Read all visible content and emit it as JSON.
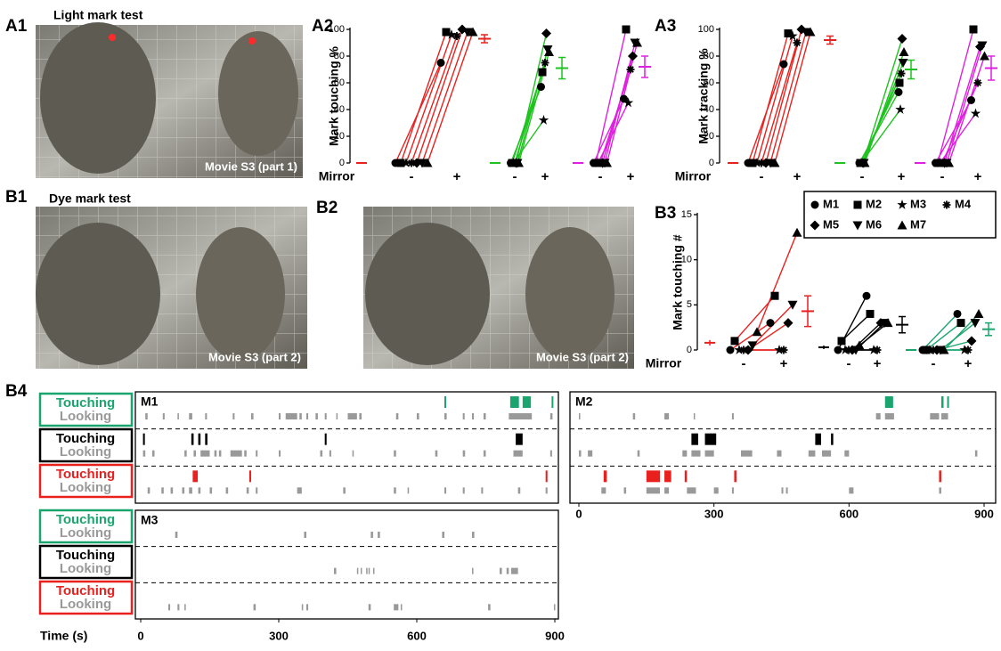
{
  "panels": {
    "a1": {
      "label": "A1",
      "title": "Light mark test",
      "caption": "Movie S3 (part 1)"
    },
    "b1": {
      "label": "B1",
      "title": "Dye mark test",
      "caption": "Movie S3 (part 2)"
    },
    "b2": {
      "label": "B2",
      "caption": "Movie S3 (part 2)"
    },
    "b4": {
      "label": "B4"
    }
  },
  "legend": [
    {
      "name": "M1",
      "marker": "circle"
    },
    {
      "name": "M2",
      "marker": "square"
    },
    {
      "name": "M3",
      "marker": "star"
    },
    {
      "name": "M4",
      "marker": "asterisk"
    },
    {
      "name": "M5",
      "marker": "diamond"
    },
    {
      "name": "M6",
      "marker": "triangle-down"
    },
    {
      "name": "M7",
      "marker": "triangle-up"
    }
  ],
  "chart_data": [
    {
      "type": "paired-dot",
      "label": "A2",
      "ylabel": "Mark touching %",
      "xlabel": "Mirror",
      "conditions": [
        "-",
        "+"
      ],
      "ylim": [
        0,
        100
      ],
      "yticks": [
        0,
        20,
        40,
        60,
        80,
        100
      ],
      "groups": [
        {
          "color": "#e8211f",
          "baseline": 0,
          "minus": [
            0,
            0,
            0,
            0,
            0,
            0,
            0
          ],
          "plus": [
            75,
            98,
            96,
            95,
            100,
            98,
            98
          ],
          "mean": 93,
          "err": 3
        },
        {
          "color": "#1fc21f",
          "baseline": 0,
          "minus": [
            0,
            0,
            0,
            0,
            0,
            0,
            0
          ],
          "plus": [
            57,
            68,
            32,
            75,
            97,
            85,
            83
          ],
          "mean": 71,
          "err": 8
        },
        {
          "color": "#e020e0",
          "baseline": 0,
          "minus": [
            0,
            0,
            0,
            0,
            0,
            0,
            0
          ],
          "plus": [
            48,
            100,
            45,
            70,
            80,
            90,
            90
          ],
          "mean": 72,
          "err": 8
        }
      ]
    },
    {
      "type": "paired-dot",
      "label": "A3",
      "ylabel": "Mark tracking %",
      "xlabel": "Mirror",
      "conditions": [
        "-",
        "+"
      ],
      "ylim": [
        0,
        100
      ],
      "yticks": [
        0,
        20,
        40,
        60,
        80,
        100
      ],
      "groups": [
        {
          "color": "#e8211f",
          "baseline": 0,
          "minus": [
            0,
            0,
            0,
            0,
            0,
            0,
            0
          ],
          "plus": [
            74,
            97,
            95,
            90,
            100,
            98,
            98
          ],
          "mean": 92,
          "err": 3
        },
        {
          "color": "#1fc21f",
          "baseline": 0,
          "minus": [
            0,
            0,
            0,
            0,
            0,
            0,
            0
          ],
          "plus": [
            53,
            60,
            40,
            67,
            93,
            75,
            83
          ],
          "mean": 70,
          "err": 7
        },
        {
          "color": "#e020e0",
          "baseline": 0,
          "minus": [
            0,
            0,
            0,
            0,
            0,
            0,
            0
          ],
          "plus": [
            47,
            100,
            37,
            60,
            87,
            88,
            80
          ],
          "mean": 71,
          "err": 9
        }
      ]
    },
    {
      "type": "paired-dot",
      "label": "B3",
      "ylabel": "Mark touching #",
      "xlabel": "Mirror",
      "conditions": [
        "-",
        "+"
      ],
      "ylim": [
        0,
        15
      ],
      "yticks": [
        0,
        5,
        10,
        15
      ],
      "groups": [
        {
          "color": "#e8211f",
          "baseline": 0.8,
          "baseline_err": 0.3,
          "minus": [
            0,
            1,
            0,
            0,
            0,
            0.5,
            2
          ],
          "plus": [
            3,
            6,
            0,
            0,
            3,
            5,
            13
          ],
          "mean": 4.3,
          "err": 1.7
        },
        {
          "color": "#000000",
          "baseline": 0.3,
          "baseline_err": 0.2,
          "minus": [
            0,
            1,
            0,
            0,
            0,
            0,
            0.5
          ],
          "plus": [
            6,
            4,
            0,
            0,
            3,
            3,
            3
          ],
          "mean": 2.8,
          "err": 0.9
        },
        {
          "color": "#1aa56e",
          "baseline": 0,
          "minus": [
            0,
            0,
            0,
            0,
            0,
            0,
            0
          ],
          "plus": [
            4,
            3,
            0,
            0,
            1,
            3,
            4
          ],
          "mean": 2.3,
          "err": 0.7
        }
      ]
    },
    {
      "type": "raster",
      "xlabel": "Time (s)",
      "xlim": [
        0,
        900
      ],
      "xticks": [
        0,
        300,
        600,
        900
      ],
      "event_labels": {
        "touching": "Touching",
        "looking": "Looking"
      },
      "condition_colors": [
        "#1aa56e",
        "#000000",
        "#e8211f"
      ],
      "looking_color": "#999999",
      "monkeys": [
        {
          "name": "M1",
          "rows": [
            {
              "touching": [
                [
                  660,
                  663
                ],
                [
                  803,
                  822
                ],
                [
                  830,
                  848
                ],
                [
                  893,
                  896
                ]
              ],
              "looking": [
                [
                  10,
                  15
                ],
                [
                  48,
                  52
                ],
                [
                  80,
                  83
                ],
                [
                  105,
                  112
                ],
                [
                  140,
                  144
                ],
                [
                  200,
                  204
                ],
                [
                  240,
                  245
                ],
                [
                  300,
                  304
                ],
                [
                  315,
                  340
                ],
                [
                  345,
                  350
                ],
                [
                  360,
                  364
                ],
                [
                  380,
                  385
                ],
                [
                  400,
                  404
                ],
                [
                  425,
                  428
                ],
                [
                  450,
                  470
                ],
                [
                  475,
                  480
                ],
                [
                  555,
                  560
                ],
                [
                  600,
                  605
                ],
                [
                  660,
                  665
                ],
                [
                  700,
                  704
                ],
                [
                  720,
                  724
                ],
                [
                  745,
                  750
                ],
                [
                  800,
                  850
                ],
                [
                  890,
                  895
                ]
              ]
            },
            {
              "touching": [
                [
                  5,
                  9
                ],
                [
                  110,
                  115
                ],
                [
                  125,
                  130
                ],
                [
                  140,
                  145
                ],
                [
                  400,
                  404
                ],
                [
                  815,
                  830
                ]
              ],
              "looking": [
                [
                  5,
                  10
                ],
                [
                  25,
                  30
                ],
                [
                  95,
                  100
                ],
                [
                  115,
                  120
                ],
                [
                  130,
                  150
                ],
                [
                  160,
                  165
                ],
                [
                  170,
                  175
                ],
                [
                  195,
                  220
                ],
                [
                  225,
                  230
                ],
                [
                  250,
                  254
                ],
                [
                  300,
                  304
                ],
                [
                  390,
                  395
                ],
                [
                  410,
                  414
                ],
                [
                  460,
                  463
                ],
                [
                  550,
                  555
                ],
                [
                  640,
                  645
                ],
                [
                  700,
                  705
                ],
                [
                  745,
                  750
                ],
                [
                  810,
                  830
                ],
                [
                  890,
                  894
                ]
              ]
            },
            {
              "touching": [
                [
                  113,
                  124
                ],
                [
                  236,
                  240
                ],
                [
                  880,
                  884
                ]
              ],
              "looking": [
                [
                  15,
                  20
                ],
                [
                  45,
                  50
                ],
                [
                  65,
                  70
                ],
                [
                  90,
                  95
                ],
                [
                  105,
                  112
                ],
                [
                  125,
                  130
                ],
                [
                  150,
                  155
                ],
                [
                  185,
                  190
                ],
                [
                  230,
                  235
                ],
                [
                  250,
                  254
                ],
                [
                  340,
                  350
                ],
                [
                  440,
                  445
                ],
                [
                  550,
                  555
                ],
                [
                  580,
                  583
                ],
                [
                  660,
                  664
                ],
                [
                  700,
                  704
                ],
                [
                  740,
                  744
                ],
                [
                  820,
                  825
                ],
                [
                  880,
                  884
                ]
              ]
            }
          ]
        },
        {
          "name": "M2",
          "rows": [
            {
              "touching": [
                [
                  680,
                  698
                ],
                [
                  805,
                  810
                ],
                [
                  818,
                  822
                ]
              ],
              "looking": [
                [
                  0,
                  3
                ],
                [
                  120,
                  125
                ],
                [
                  190,
                  200
                ],
                [
                  255,
                  258
                ],
                [
                  340,
                  344
                ],
                [
                  660,
                  670
                ],
                [
                  680,
                  700
                ],
                [
                  780,
                  800
                ],
                [
                  805,
                  820
                ]
              ]
            },
            {
              "touching": [
                [
                  250,
                  265
                ],
                [
                  280,
                  305
                ],
                [
                  525,
                  538
                ],
                [
                  560,
                  565
                ]
              ],
              "looking": [
                [
                  0,
                  5
                ],
                [
                  20,
                  30
                ],
                [
                  130,
                  135
                ],
                [
                  230,
                  240
                ],
                [
                  250,
                  270
                ],
                [
                  280,
                  300
                ],
                [
                  360,
                  385
                ],
                [
                  440,
                  450
                ],
                [
                  510,
                  525
                ],
                [
                  540,
                  560
                ],
                [
                  590,
                  600
                ],
                [
                  880,
                  885
                ]
              ]
            },
            {
              "touching": [
                [
                  55,
                  62
                ],
                [
                  150,
                  180
                ],
                [
                  190,
                  205
                ],
                [
                  235,
                  240
                ],
                [
                  345,
                  350
                ],
                [
                  800,
                  805
                ]
              ],
              "looking": [
                [
                  50,
                  60
                ],
                [
                  100,
                  105
                ],
                [
                  150,
                  180
                ],
                [
                  190,
                  200
                ],
                [
                  240,
                  260
                ],
                [
                  300,
                  310
                ],
                [
                  340,
                  344
                ],
                [
                  450,
                  454
                ],
                [
                  460,
                  464
                ],
                [
                  600,
                  610
                ],
                [
                  800,
                  805
                ]
              ]
            }
          ]
        },
        {
          "name": "M3",
          "rows": [
            {
              "touching": [],
              "looking": [
                [
                  75,
                  80
                ],
                [
                  355,
                  360
                ],
                [
                  500,
                  505
                ],
                [
                  515,
                  520
                ],
                [
                  655,
                  660
                ],
                [
                  720,
                  725
                ]
              ]
            },
            {
              "touching": [],
              "looking": [
                [
                  420,
                  425
                ],
                [
                  470,
                  472
                ],
                [
                  478,
                  480
                ],
                [
                  490,
                  492
                ],
                [
                  495,
                  497
                ],
                [
                  505,
                  508
                ],
                [
                  720,
                  723
                ],
                [
                  780,
                  785
                ],
                [
                  795,
                  800
                ],
                [
                  805,
                  820
                ]
              ]
            },
            {
              "touching": [],
              "looking": [
                [
                  60,
                  64
                ],
                [
                  80,
                  84
                ],
                [
                  95,
                  98
                ],
                [
                  245,
                  250
                ],
                [
                  350,
                  353
                ],
                [
                  360,
                  364
                ],
                [
                  495,
                  500
                ],
                [
                  550,
                  560
                ],
                [
                  565,
                  568
                ],
                [
                  755,
                  760
                ],
                [
                  898,
                  900
                ]
              ]
            }
          ]
        }
      ]
    }
  ]
}
